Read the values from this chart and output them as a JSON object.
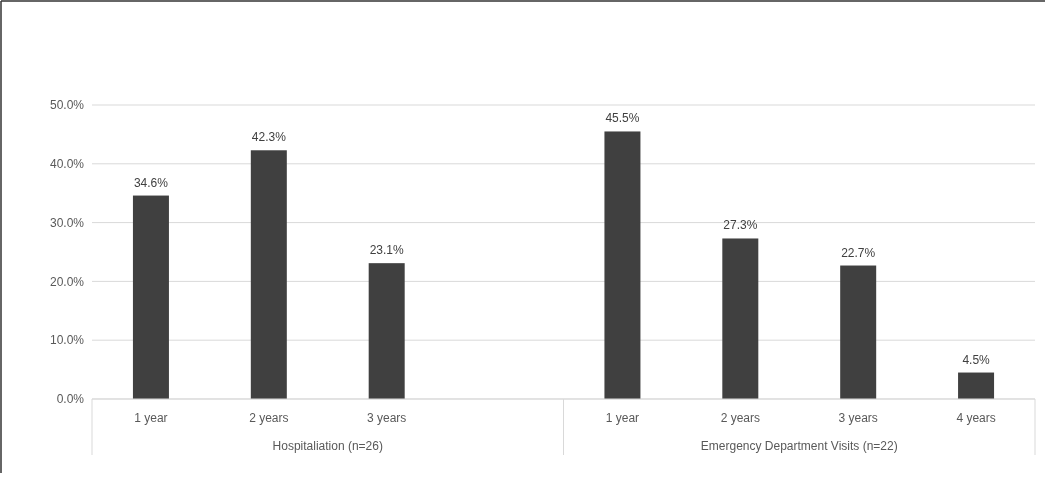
{
  "chart_data": {
    "type": "bar",
    "categories": [
      "1 year",
      "2 years",
      "3 years",
      null,
      "1 year",
      "2 years",
      "3 years",
      "4 years"
    ],
    "values": [
      34.6,
      42.3,
      23.1,
      null,
      45.5,
      27.3,
      22.7,
      4.5
    ],
    "value_labels": [
      "34.6%",
      "42.3%",
      "23.1%",
      null,
      "45.5%",
      "27.3%",
      "22.7%",
      "4.5%"
    ],
    "color": "#404040",
    "ylim": [
      0,
      50
    ],
    "yticks": [
      {
        "value": 0,
        "label": "0.0%"
      },
      {
        "value": 10,
        "label": "10.0%"
      },
      {
        "value": 20,
        "label": "20.0%"
      },
      {
        "value": 30,
        "label": "30.0%"
      },
      {
        "value": 40,
        "label": "40.0%"
      },
      {
        "value": 50,
        "label": "50.0%"
      }
    ],
    "grid": "y",
    "annotations": [
      "Hospitaliation (n=26)",
      "Emergency Department Visits (n=22)"
    ]
  }
}
